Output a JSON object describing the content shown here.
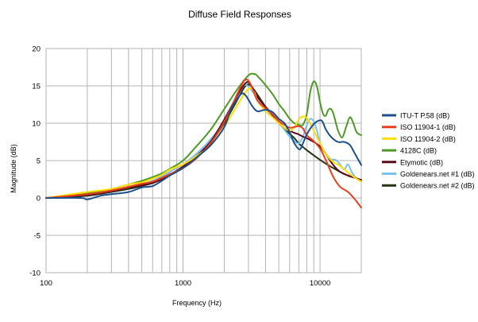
{
  "chart_data": {
    "type": "line",
    "title": "Diffuse Field Responses",
    "xlabel": "Frequency (Hz)",
    "ylabel": "Magnitude (dB)",
    "xscale": "log",
    "xlim": [
      100,
      20000
    ],
    "ylim": [
      -10,
      20
    ],
    "grid": true,
    "legend_position": "right",
    "x_ticks": [
      {
        "v": 100,
        "label": "100"
      },
      {
        "v": 1000,
        "label": "1000"
      },
      {
        "v": 10000,
        "label": "10000"
      }
    ],
    "y_ticks": [
      {
        "v": 20,
        "label": "20"
      },
      {
        "v": 15,
        "label": "15"
      },
      {
        "v": 10,
        "label": "10"
      },
      {
        "v": 5,
        "label": "5"
      },
      {
        "v": 0,
        "label": "0"
      },
      {
        "v": -5,
        "label": "-5"
      },
      {
        "v": -10,
        "label": "-10"
      }
    ],
    "series": [
      {
        "name": "ITU-T P.58 (dB)",
        "color": "#1c4f8c",
        "points": [
          [
            100,
            0
          ],
          [
            180,
            0
          ],
          [
            200,
            -0.2
          ],
          [
            250,
            0.3
          ],
          [
            300,
            0.5
          ],
          [
            400,
            0.8
          ],
          [
            500,
            1.4
          ],
          [
            600,
            1.6
          ],
          [
            700,
            2.3
          ],
          [
            800,
            3.0
          ],
          [
            1000,
            4.0
          ],
          [
            1250,
            5.4
          ],
          [
            1600,
            7.1
          ],
          [
            2000,
            9.5
          ],
          [
            2250,
            12.0
          ],
          [
            2500,
            13.3
          ],
          [
            2700,
            14.0
          ],
          [
            2900,
            13.6
          ],
          [
            3200,
            12.3
          ],
          [
            3500,
            11.6
          ],
          [
            4000,
            11.8
          ],
          [
            4500,
            11.5
          ],
          [
            5000,
            10.6
          ],
          [
            5500,
            10.0
          ],
          [
            6000,
            8.8
          ],
          [
            6500,
            7.3
          ],
          [
            7100,
            6.5
          ],
          [
            7500,
            7.3
          ],
          [
            8000,
            8.5
          ],
          [
            9000,
            9.9
          ],
          [
            10000,
            10.4
          ],
          [
            10500,
            10.1
          ],
          [
            11000,
            9.2
          ],
          [
            12000,
            8.2
          ],
          [
            13500,
            7.5
          ],
          [
            15000,
            7.5
          ],
          [
            16500,
            7.1
          ],
          [
            18000,
            5.9
          ],
          [
            20000,
            4.4
          ]
        ]
      },
      {
        "name": "ISO 11904-1 (dB)",
        "color": "#e8401c",
        "points": [
          [
            100,
            0
          ],
          [
            200,
            0.5
          ],
          [
            300,
            1.0
          ],
          [
            400,
            1.5
          ],
          [
            500,
            1.9
          ],
          [
            600,
            2.2
          ],
          [
            700,
            2.7
          ],
          [
            800,
            3.2
          ],
          [
            1000,
            4.0
          ],
          [
            1250,
            5.3
          ],
          [
            1600,
            7.4
          ],
          [
            2000,
            10.2
          ],
          [
            2500,
            14.0
          ],
          [
            2800,
            15.7
          ],
          [
            3000,
            15.7
          ],
          [
            3200,
            14.7
          ],
          [
            3500,
            13.0
          ],
          [
            4000,
            12.0
          ],
          [
            4500,
            11.2
          ],
          [
            5000,
            10.3
          ],
          [
            5500,
            9.8
          ],
          [
            6000,
            9.4
          ],
          [
            6500,
            9.5
          ],
          [
            7000,
            9.6
          ],
          [
            7500,
            9.3
          ],
          [
            8000,
            8.4
          ],
          [
            9000,
            7.6
          ],
          [
            10000,
            6.6
          ],
          [
            11000,
            5.1
          ],
          [
            12500,
            2.8
          ],
          [
            14000,
            1.5
          ],
          [
            16000,
            0.8
          ],
          [
            18000,
            -0.2
          ],
          [
            20000,
            -1.3
          ]
        ]
      },
      {
        "name": "ISO 11904-2 (dB)",
        "color": "#ffdd00",
        "points": [
          [
            100,
            0
          ],
          [
            200,
            0.8
          ],
          [
            300,
            1.2
          ],
          [
            400,
            1.8
          ],
          [
            500,
            2.1
          ],
          [
            600,
            2.6
          ],
          [
            700,
            3.1
          ],
          [
            800,
            3.8
          ],
          [
            1000,
            4.5
          ],
          [
            1250,
            5.6
          ],
          [
            1600,
            7.1
          ],
          [
            2000,
            9.5
          ],
          [
            2500,
            12.5
          ],
          [
            3000,
            14.6
          ],
          [
            3300,
            14.2
          ],
          [
            3500,
            13.0
          ],
          [
            4000,
            11.6
          ],
          [
            4500,
            10.8
          ],
          [
            5000,
            10.0
          ],
          [
            5500,
            9.4
          ],
          [
            6000,
            9.0
          ],
          [
            6500,
            9.5
          ],
          [
            7000,
            10.5
          ],
          [
            7500,
            10.9
          ],
          [
            8000,
            10.7
          ],
          [
            8500,
            9.9
          ],
          [
            9000,
            9.0
          ],
          [
            10000,
            7.3
          ],
          [
            11000,
            5.9
          ],
          [
            12500,
            4.8
          ],
          [
            14000,
            4.3
          ],
          [
            16000,
            3.4
          ],
          [
            18000,
            2.7
          ],
          [
            20000,
            2.2
          ]
        ]
      },
      {
        "name": "4128C (dB)",
        "color": "#4e9a26",
        "points": [
          [
            100,
            0
          ],
          [
            200,
            0.6
          ],
          [
            300,
            1.2
          ],
          [
            400,
            1.8
          ],
          [
            500,
            2.3
          ],
          [
            600,
            2.8
          ],
          [
            700,
            3.3
          ],
          [
            800,
            3.9
          ],
          [
            1000,
            5.0
          ],
          [
            1250,
            6.9
          ],
          [
            1600,
            9.2
          ],
          [
            2000,
            11.9
          ],
          [
            2500,
            14.6
          ],
          [
            3000,
            16.4
          ],
          [
            3300,
            16.6
          ],
          [
            3500,
            16.3
          ],
          [
            4000,
            15.1
          ],
          [
            4500,
            13.9
          ],
          [
            5000,
            12.6
          ],
          [
            5500,
            11.6
          ],
          [
            6000,
            10.6
          ],
          [
            6500,
            10.0
          ],
          [
            7000,
            9.8
          ],
          [
            7500,
            9.8
          ],
          [
            8000,
            11.2
          ],
          [
            8500,
            14.3
          ],
          [
            9000,
            15.6
          ],
          [
            9500,
            14.9
          ],
          [
            10000,
            12.8
          ],
          [
            10500,
            11.3
          ],
          [
            11000,
            11.0
          ],
          [
            11500,
            11.8
          ],
          [
            12000,
            11.9
          ],
          [
            12500,
            11.3
          ],
          [
            13500,
            9.1
          ],
          [
            14500,
            8.1
          ],
          [
            15500,
            9.5
          ],
          [
            16500,
            10.8
          ],
          [
            17500,
            10.0
          ],
          [
            18500,
            8.8
          ],
          [
            20000,
            8.4
          ]
        ]
      },
      {
        "name": "Etymotic (dB)",
        "color": "#5c0a17",
        "points": [
          [
            100,
            0
          ],
          [
            200,
            0.4
          ],
          [
            300,
            0.9
          ],
          [
            400,
            1.4
          ],
          [
            500,
            1.7
          ],
          [
            600,
            2.0
          ],
          [
            700,
            2.5
          ],
          [
            800,
            3.1
          ],
          [
            1000,
            4.2
          ],
          [
            1250,
            5.6
          ],
          [
            1600,
            7.6
          ],
          [
            2000,
            10.5
          ],
          [
            2500,
            13.8
          ],
          [
            2800,
            15.2
          ],
          [
            3000,
            15.5
          ],
          [
            3200,
            14.8
          ],
          [
            3500,
            13.5
          ],
          [
            4000,
            12.2
          ],
          [
            4500,
            11.1
          ],
          [
            5000,
            10.0
          ],
          [
            5500,
            9.4
          ],
          [
            6000,
            9.0
          ],
          [
            6500,
            8.7
          ],
          [
            7000,
            8.5
          ],
          [
            7500,
            8.2
          ],
          [
            8000,
            8.0
          ],
          [
            9000,
            7.5
          ],
          [
            10000,
            6.9
          ],
          [
            11000,
            5.9
          ],
          [
            12500,
            4.4
          ],
          [
            14000,
            3.5
          ],
          [
            16000,
            3.0
          ],
          [
            18000,
            2.7
          ],
          [
            20000,
            2.4
          ]
        ]
      },
      {
        "name": "Goldenears.net #1 (dB)",
        "color": "#79c2ee",
        "points": [
          [
            100,
            0
          ],
          [
            200,
            0.4
          ],
          [
            300,
            0.9
          ],
          [
            400,
            1.4
          ],
          [
            500,
            1.8
          ],
          [
            600,
            2.3
          ],
          [
            700,
            2.9
          ],
          [
            800,
            3.5
          ],
          [
            1000,
            4.5
          ],
          [
            1250,
            5.9
          ],
          [
            1600,
            7.9
          ],
          [
            2000,
            10.3
          ],
          [
            2400,
            13.0
          ],
          [
            2700,
            14.8
          ],
          [
            2900,
            15.1
          ],
          [
            3200,
            14.3
          ],
          [
            3500,
            13.3
          ],
          [
            4000,
            12.0
          ],
          [
            4500,
            11.0
          ],
          [
            5000,
            10.1
          ],
          [
            5500,
            9.1
          ],
          [
            6000,
            8.2
          ],
          [
            6500,
            7.6
          ],
          [
            7000,
            7.3
          ],
          [
            7500,
            8.2
          ],
          [
            8000,
            9.7
          ],
          [
            8500,
            10.6
          ],
          [
            9000,
            10.2
          ],
          [
            9500,
            9.0
          ],
          [
            10000,
            7.4
          ],
          [
            11000,
            6.0
          ],
          [
            12000,
            5.2
          ],
          [
            13000,
            5.1
          ],
          [
            14000,
            4.5
          ],
          [
            15000,
            3.8
          ],
          [
            16000,
            4.5
          ],
          [
            17000,
            3.5
          ],
          [
            18500,
            2.6
          ],
          [
            20000,
            2.3
          ]
        ]
      },
      {
        "name": "Goldenears.net #2 (dB)",
        "color": "#243516",
        "points": [
          [
            100,
            0
          ],
          [
            200,
            0.3
          ],
          [
            300,
            0.8
          ],
          [
            400,
            1.2
          ],
          [
            500,
            1.6
          ],
          [
            600,
            2.0
          ],
          [
            700,
            2.5
          ],
          [
            800,
            3.1
          ],
          [
            1000,
            4.1
          ],
          [
            1250,
            5.5
          ],
          [
            1600,
            7.5
          ],
          [
            2000,
            10.0
          ],
          [
            2500,
            13.2
          ],
          [
            2800,
            14.8
          ],
          [
            3000,
            15.2
          ],
          [
            3200,
            14.8
          ],
          [
            3500,
            13.8
          ],
          [
            4000,
            12.2
          ],
          [
            4500,
            11.0
          ],
          [
            5000,
            10.1
          ],
          [
            5500,
            9.3
          ],
          [
            6000,
            8.6
          ],
          [
            6500,
            8.0
          ],
          [
            7000,
            7.3
          ],
          [
            8000,
            6.4
          ],
          [
            9000,
            5.7
          ],
          [
            10000,
            5.1
          ],
          [
            11000,
            4.6
          ],
          [
            12500,
            4.0
          ],
          [
            14000,
            3.5
          ],
          [
            16000,
            3.0
          ],
          [
            18000,
            2.7
          ],
          [
            20000,
            2.4
          ]
        ]
      }
    ]
  }
}
